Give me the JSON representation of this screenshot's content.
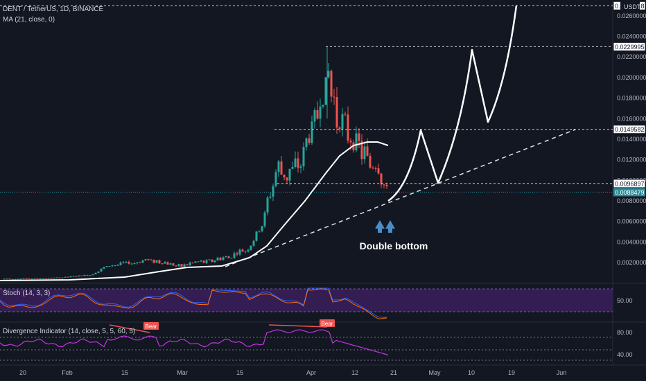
{
  "header": {
    "symbol_line": "DENT / TetherUS, 1D, BINANCE",
    "ma_line": "MA (21, close, 0)",
    "currency": "USDT"
  },
  "panes": {
    "stoch_label": "Stoch (14, 3, 3)",
    "stoch_tick": "50.00",
    "div_label": "Divergence Indicator (14, close, 5, 5, 60, 5)",
    "div_ticks": [
      "80.00",
      "40.00"
    ],
    "bear_label": "Bear"
  },
  "annotation": {
    "text": "Double bottom"
  },
  "colors": {
    "background": "#131722",
    "up": "#26a69a",
    "down": "#ef5350",
    "ma": "#ffffff",
    "stoch_band": "#3b1f5c",
    "divergence": "#c533e6",
    "price_tag": "#2a8a96"
  },
  "chart_data": {
    "type": "candlestick",
    "x_ticks": [
      "20",
      "Feb",
      "15",
      "Mar",
      "15",
      "Apr",
      "12",
      "21",
      "May",
      "10",
      "19",
      "Jun"
    ],
    "y_ticks": [
      "0.0260000",
      "0.0240000",
      "0.0220000",
      "0.0200000",
      "0.0180000",
      "0.0160000",
      "0.0140000",
      "0.0120000",
      "0.0100000",
      "0.0080000",
      "0.0060000",
      "0.0040000",
      "0.0020000"
    ],
    "ylim": [
      0,
      0.027
    ],
    "levels": [
      {
        "label": "0.0269818",
        "value": 0.0269818
      },
      {
        "label": "0.0229995",
        "value": 0.0229995
      },
      {
        "label": "0.0149582",
        "value": 0.0149582
      },
      {
        "label": "0.0096897",
        "value": 0.0096897
      }
    ],
    "current_price": {
      "label": "0.0088479",
      "value": 0.0088479
    },
    "ma_label": "MA (21, close, 0)"
  }
}
